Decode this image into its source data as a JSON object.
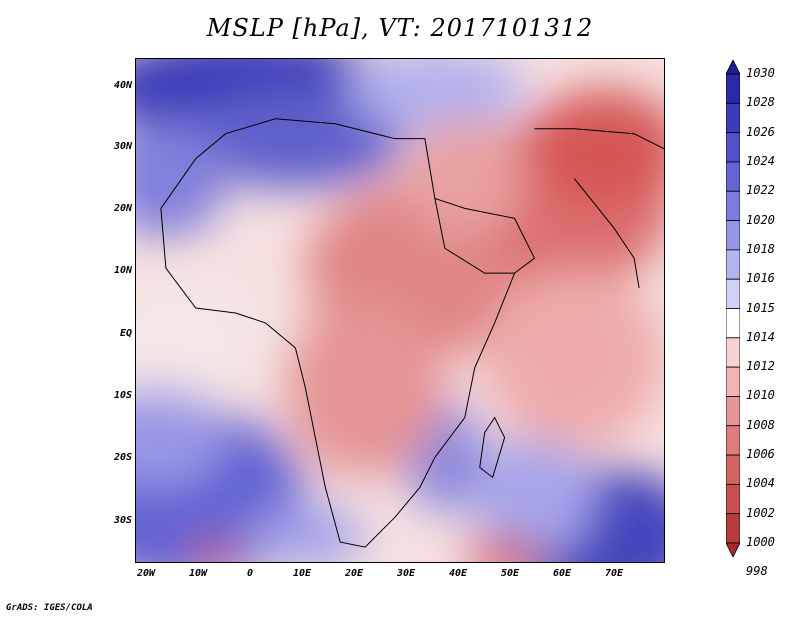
{
  "title": "MSLP [hPa], VT: 2017101312",
  "credit": "GrADS: IGES/COLA",
  "map": {
    "lon_range": [
      -20,
      80
    ],
    "lat_range": [
      -36,
      45
    ],
    "lat_labels": [
      "40N",
      "30N",
      "20N",
      "10N",
      "EQ",
      "10S",
      "20S",
      "30S"
    ],
    "lat_values": [
      40,
      30,
      20,
      10,
      0,
      -10,
      -20,
      -30
    ],
    "lon_labels": [
      "20W",
      "10W",
      "0",
      "10E",
      "20E",
      "30E",
      "40E",
      "50E",
      "60E",
      "70E"
    ],
    "lon_values": [
      -20,
      -10,
      0,
      10,
      20,
      30,
      40,
      50,
      60,
      70
    ]
  },
  "colorbar": {
    "levels": [
      "1030",
      "1028",
      "1026",
      "1024",
      "1022",
      "1020",
      "1018",
      "1016",
      "1015",
      "1014",
      "1012",
      "1010",
      "1008",
      "1006",
      "1004",
      "1002",
      "1000",
      "998"
    ],
    "colors": [
      "#1e1e96",
      "#2a2aa8",
      "#3c3cb8",
      "#5050c8",
      "#6464d2",
      "#7c7cdc",
      "#9696e6",
      "#b4b4f0",
      "#d2d2f8",
      "#ffffff",
      "#f8d2d2",
      "#f0b4b4",
      "#e69696",
      "#dc7c7c",
      "#d26464",
      "#c85050",
      "#b83c3c",
      "#a82a2a"
    ]
  }
}
